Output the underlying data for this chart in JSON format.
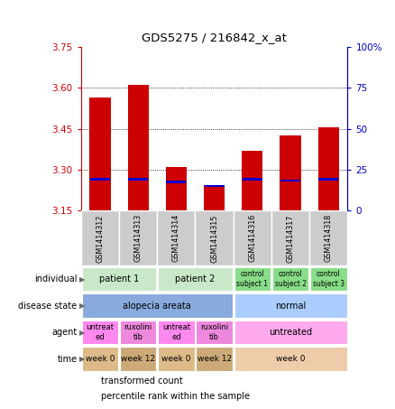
{
  "title": "GDS5275 / 216842_x_at",
  "samples": [
    "GSM1414312",
    "GSM1414313",
    "GSM1414314",
    "GSM1414315",
    "GSM1414316",
    "GSM1414317",
    "GSM1414318"
  ],
  "red_values": [
    3.565,
    3.61,
    3.31,
    3.245,
    3.37,
    3.425,
    3.455
  ],
  "blue_values": [
    3.265,
    3.265,
    3.255,
    3.24,
    3.265,
    3.26,
    3.265
  ],
  "ylim_left": [
    3.15,
    3.75
  ],
  "yticks_left": [
    3.15,
    3.3,
    3.45,
    3.6,
    3.75
  ],
  "yticks_right": [
    0,
    25,
    50,
    75,
    100
  ],
  "bar_bottom": 3.15,
  "metadata_rows": [
    {
      "label": "individual",
      "cells": [
        {
          "text": "patient 1",
          "span": 2,
          "color": "#c8e8c8",
          "fontsize": 7
        },
        {
          "text": "patient 2",
          "span": 2,
          "color": "#c8e8c8",
          "fontsize": 7
        },
        {
          "text": "control\nsubject 1",
          "span": 1,
          "color": "#88dd88",
          "fontsize": 5.5
        },
        {
          "text": "control\nsubject 2",
          "span": 1,
          "color": "#88dd88",
          "fontsize": 5.5
        },
        {
          "text": "control\nsubject 3",
          "span": 1,
          "color": "#88dd88",
          "fontsize": 5.5
        }
      ]
    },
    {
      "label": "disease state",
      "cells": [
        {
          "text": "alopecia areata",
          "span": 4,
          "color": "#88aadd",
          "fontsize": 7
        },
        {
          "text": "normal",
          "span": 3,
          "color": "#aaccff",
          "fontsize": 7
        }
      ]
    },
    {
      "label": "agent",
      "cells": [
        {
          "text": "untreat\ned",
          "span": 1,
          "color": "#ff88ee",
          "fontsize": 6
        },
        {
          "text": "ruxolini\ntib",
          "span": 1,
          "color": "#ee88dd",
          "fontsize": 6
        },
        {
          "text": "untreat\ned",
          "span": 1,
          "color": "#ff88ee",
          "fontsize": 6
        },
        {
          "text": "ruxolini\ntib",
          "span": 1,
          "color": "#ee88dd",
          "fontsize": 6
        },
        {
          "text": "untreated",
          "span": 3,
          "color": "#ffaaee",
          "fontsize": 7
        }
      ]
    },
    {
      "label": "time",
      "cells": [
        {
          "text": "week 0",
          "span": 1,
          "color": "#ddbb88",
          "fontsize": 6.5
        },
        {
          "text": "week 12",
          "span": 1,
          "color": "#ccaa77",
          "fontsize": 6.5
        },
        {
          "text": "week 0",
          "span": 1,
          "color": "#ddbb88",
          "fontsize": 6.5
        },
        {
          "text": "week 12",
          "span": 1,
          "color": "#ccaa77",
          "fontsize": 6.5
        },
        {
          "text": "week 0",
          "span": 3,
          "color": "#eeccaa",
          "fontsize": 6.5
        }
      ]
    }
  ],
  "legend": [
    {
      "color": "#cc0000",
      "label": "transformed count"
    },
    {
      "color": "#0000cc",
      "label": "percentile rank within the sample"
    }
  ],
  "bar_width": 0.55,
  "bar_color": "#cc0000",
  "blue_color": "#0000cc",
  "left_axis_color": "#cc0000",
  "right_axis_color": "#0000bb",
  "sample_bg_color": "#cccccc",
  "sample_border_color": "#ffffff"
}
